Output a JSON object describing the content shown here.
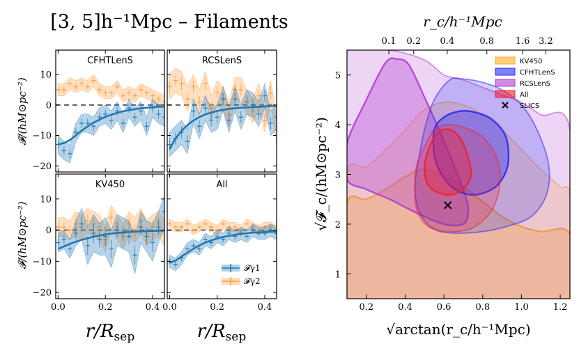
{
  "figure_title": "[3, 5]h⁻¹Mpc – Filaments",
  "colors": {
    "gamma1": "#1f77b4",
    "gamma2": "#ff9a3c",
    "zero_line": "#666666",
    "KV450": "#ffb020",
    "CFHTLenS": "#2a2cf0",
    "RCSLenS": "#b040d0",
    "All": "#f02030",
    "SLICS": "#000000"
  },
  "panel_labels": [
    "CFHTLenS",
    "RCSLenS",
    "KV450",
    "All"
  ],
  "left_axes": {
    "ylabel": "𝓕/(hM⊙pc⁻²)",
    "xlabel": "r/R",
    "xlabel_sub": "sep",
    "x_ticks": [
      "0.0",
      "0.2",
      "0.4"
    ],
    "y_ticks": [
      "10",
      "0",
      "−10",
      "−20"
    ]
  },
  "right_axes": {
    "xlabel": "√arctan(r_c/h⁻¹Mpc)",
    "ylabel": "√𝓕_c/(hM⊙pc⁻²)",
    "top_label": "r_c/h⁻¹Mpc",
    "x_ticks": [
      "0.2",
      "0.4",
      "0.6",
      "0.8",
      "1.0",
      "1.2"
    ],
    "y_ticks": [
      "1",
      "2",
      "3",
      "4",
      "5"
    ],
    "top_ticks": [
      "0.1",
      "0.2",
      "0.4",
      "0.8",
      "1.6",
      "3.2"
    ]
  },
  "legend_left": [
    "𝓕γ1",
    "𝓕γ2"
  ],
  "legend_right": [
    "KV450",
    "CFHTLenS",
    "RCSLenS",
    "All",
    "SLICS"
  ],
  "chart_data": [
    {
      "type": "line",
      "panel": "CFHTLenS",
      "xlim": [
        -0.01,
        0.45
      ],
      "ylim": [
        -22,
        18
      ],
      "x": [
        0.0,
        0.025,
        0.05,
        0.075,
        0.1,
        0.125,
        0.15,
        0.175,
        0.2,
        0.225,
        0.25,
        0.275,
        0.3,
        0.325,
        0.35,
        0.375,
        0.4,
        0.425,
        0.45
      ],
      "series": [
        {
          "name": "𝓕γ1",
          "values": [
            -13,
            -15,
            -16,
            -9,
            -6,
            -6,
            -7,
            -4,
            -3,
            -5,
            -2,
            -6,
            -1,
            -4,
            -2,
            -7,
            -1,
            -3,
            -4
          ],
          "err": [
            3,
            3,
            3,
            3,
            3,
            3,
            3,
            3,
            3,
            3,
            3,
            3,
            3,
            3,
            3,
            3,
            3,
            3,
            3
          ],
          "model": [
            -13,
            -12.5,
            -11.5,
            -10,
            -8.4,
            -7,
            -5.8,
            -4.8,
            -3.9,
            -3.2,
            -2.6,
            -2.1,
            -1.7,
            -1.4,
            -1.1,
            -0.9,
            -0.7,
            -0.6,
            -0.5
          ]
        },
        {
          "name": "𝓕γ2",
          "values": [
            5,
            5,
            7,
            6,
            7,
            6,
            8,
            5,
            4,
            4,
            6,
            3,
            4,
            3,
            5,
            4,
            3,
            2,
            1
          ],
          "err": [
            2,
            2,
            2,
            2,
            2,
            2,
            2,
            2,
            2,
            2,
            2,
            2,
            2,
            2,
            2,
            2,
            2,
            2,
            2
          ]
        }
      ]
    },
    {
      "type": "line",
      "panel": "RCSLenS",
      "xlim": [
        -0.01,
        0.45
      ],
      "ylim": [
        -22,
        18
      ],
      "x": [
        0.0,
        0.025,
        0.05,
        0.075,
        0.1,
        0.125,
        0.15,
        0.175,
        0.2,
        0.225,
        0.25,
        0.275,
        0.3,
        0.325,
        0.35,
        0.375,
        0.4,
        0.425,
        0.45
      ],
      "series": [
        {
          "name": "𝓕γ1",
          "values": [
            -13,
            -11,
            -9,
            -12,
            -2,
            -7,
            -1,
            -5,
            -4,
            2,
            -5,
            2,
            -4,
            1,
            0,
            -3,
            3,
            -6,
            -4
          ],
          "err": [
            4,
            4,
            4,
            4,
            4,
            4,
            4,
            4,
            4,
            4,
            4,
            4,
            4,
            4,
            4,
            4,
            4,
            4,
            4
          ],
          "model": [
            -14.5,
            -11,
            -8.5,
            -6.6,
            -5.1,
            -4,
            -3.1,
            -2.5,
            -2,
            -1.6,
            -1.3,
            -1.1,
            -0.9,
            -0.8,
            -0.7,
            -0.6,
            -0.5,
            -0.4,
            -0.4
          ]
        },
        {
          "name": "𝓕γ2",
          "values": [
            6,
            8,
            7,
            2,
            6,
            1,
            7,
            -1,
            4,
            2,
            -3,
            5,
            5,
            1,
            -2,
            3,
            -5,
            4,
            -8
          ],
          "err": [
            4,
            4,
            4,
            4,
            4,
            4,
            4,
            4,
            4,
            4,
            4,
            4,
            4,
            4,
            4,
            4,
            4,
            4,
            4
          ]
        }
      ]
    },
    {
      "type": "line",
      "panel": "KV450",
      "xlim": [
        -0.01,
        0.45
      ],
      "ylim": [
        -22,
        18
      ],
      "x": [
        0.0,
        0.025,
        0.05,
        0.075,
        0.1,
        0.125,
        0.15,
        0.175,
        0.2,
        0.225,
        0.25,
        0.275,
        0.3,
        0.325,
        0.35,
        0.375,
        0.4,
        0.425,
        0.45
      ],
      "series": [
        {
          "name": "𝓕γ1",
          "values": [
            -4,
            -3,
            -6,
            -1,
            2,
            -5,
            -1,
            -3,
            -2,
            -6,
            0,
            -1,
            -2,
            -8,
            1,
            -2,
            -4,
            1,
            6
          ],
          "err": [
            3,
            3,
            3,
            4,
            5,
            6,
            6,
            5,
            6,
            6,
            5,
            5,
            5,
            6,
            5,
            5,
            6,
            5,
            5
          ],
          "model": [
            -6,
            -5.2,
            -4.4,
            -3.7,
            -3.1,
            -2.6,
            -2.1,
            -1.7,
            -1.4,
            -1.1,
            -0.9,
            -0.7,
            -0.6,
            -0.5,
            -0.4,
            -0.3,
            -0.25,
            -0.2,
            -0.15
          ]
        },
        {
          "name": "𝓕γ2",
          "values": [
            1,
            1,
            0,
            2,
            1,
            3,
            2,
            1,
            -3,
            4,
            1,
            -2,
            2,
            0,
            3,
            -1,
            1,
            2,
            -1
          ],
          "err": [
            3,
            3,
            3,
            4,
            4,
            4,
            4,
            4,
            4,
            4,
            4,
            4,
            4,
            4,
            4,
            4,
            4,
            4,
            4
          ]
        }
      ]
    },
    {
      "type": "line",
      "panel": "All",
      "xlim": [
        -0.01,
        0.45
      ],
      "ylim": [
        -22,
        18
      ],
      "x": [
        0.0,
        0.025,
        0.05,
        0.075,
        0.1,
        0.125,
        0.15,
        0.175,
        0.2,
        0.225,
        0.25,
        0.275,
        0.3,
        0.325,
        0.35,
        0.375,
        0.4,
        0.425,
        0.45
      ],
      "series": [
        {
          "name": "𝓕γ1",
          "values": [
            -10,
            -11,
            -9,
            -6,
            -5,
            -6,
            -3,
            -4,
            -2,
            -3,
            -1,
            -2,
            -1,
            -2,
            0,
            -1,
            -1,
            0,
            -1
          ],
          "err": [
            2,
            2,
            2,
            2,
            2,
            2,
            2,
            2,
            2,
            2,
            2,
            2,
            2,
            2,
            2,
            2,
            2,
            2,
            2
          ],
          "model": [
            -10.5,
            -9.8,
            -8.5,
            -7.2,
            -6,
            -4.9,
            -4,
            -3.3,
            -2.7,
            -2.2,
            -1.8,
            -1.5,
            -1.2,
            -1,
            -0.8,
            -0.7,
            -0.6,
            -0.5,
            -0.4
          ]
        },
        {
          "name": "𝓕γ2",
          "values": [
            2,
            1,
            1,
            2,
            0,
            1,
            2,
            1,
            0,
            2,
            1,
            1,
            0,
            2,
            1,
            0,
            1,
            1,
            0
          ],
          "err": [
            1.5,
            1.5,
            1.5,
            1.5,
            1.5,
            1.5,
            1.5,
            1.5,
            1.5,
            1.5,
            1.5,
            1.5,
            1.5,
            1.5,
            1.5,
            1.5,
            1.5,
            1.5,
            1.5
          ]
        }
      ]
    },
    {
      "type": "contour",
      "panel": "posterior",
      "xlim": [
        0.1,
        1.25
      ],
      "ylim": [
        0.5,
        5.5
      ],
      "regions": [
        {
          "name": "KV450",
          "level": "2sigma",
          "points": [
            [
              0.1,
              3.0
            ],
            [
              0.2,
              3.15
            ],
            [
              0.3,
              3.5
            ],
            [
              0.4,
              3.9
            ],
            [
              0.5,
              4.3
            ],
            [
              0.6,
              4.45
            ],
            [
              0.7,
              4.4
            ],
            [
              0.8,
              4.2
            ],
            [
              0.9,
              3.9
            ],
            [
              1.0,
              3.5
            ],
            [
              1.1,
              3.1
            ],
            [
              1.2,
              2.75
            ],
            [
              1.25,
              2.55
            ],
            [
              1.25,
              0.5
            ],
            [
              0.1,
              0.5
            ]
          ]
        },
        {
          "name": "KV450",
          "level": "1sigma",
          "points": [
            [
              0.1,
              2.4
            ],
            [
              0.2,
              2.5
            ],
            [
              0.3,
              2.7
            ],
            [
              0.4,
              2.95
            ],
            [
              0.48,
              3.1
            ],
            [
              0.55,
              3.05
            ],
            [
              0.6,
              2.95
            ],
            [
              0.7,
              2.75
            ],
            [
              0.8,
              2.45
            ],
            [
              0.9,
              2.15
            ],
            [
              1.0,
              1.95
            ],
            [
              1.1,
              1.85
            ],
            [
              1.25,
              1.8
            ],
            [
              1.25,
              0.5
            ],
            [
              0.1,
              0.5
            ]
          ]
        },
        {
          "name": "RCSLenS",
          "level": "2sigma",
          "points": [
            [
              0.1,
              5.5
            ],
            [
              0.32,
              5.5
            ],
            [
              0.5,
              5.3
            ],
            [
              0.6,
              5.0
            ],
            [
              0.7,
              4.9
            ],
            [
              0.8,
              4.75
            ],
            [
              0.9,
              4.6
            ],
            [
              1.0,
              4.45
            ],
            [
              1.1,
              4.2
            ],
            [
              1.25,
              3.9
            ],
            [
              1.25,
              0.5
            ],
            [
              0.1,
              0.5
            ]
          ]
        },
        {
          "name": "RCSLenS",
          "level": "1sigma",
          "points": [
            [
              0.1,
              3.62
            ],
            [
              0.2,
              4.5
            ],
            [
              0.3,
              5.25
            ],
            [
              0.36,
              5.32
            ],
            [
              0.42,
              5.2
            ],
            [
              0.5,
              4.55
            ],
            [
              0.58,
              3.85
            ],
            [
              0.66,
              3.1
            ],
            [
              0.72,
              2.45
            ],
            [
              0.72,
              2.1
            ],
            [
              0.68,
              1.98
            ],
            [
              0.6,
              2.0
            ],
            [
              0.5,
              2.15
            ],
            [
              0.42,
              2.3
            ],
            [
              0.32,
              2.5
            ],
            [
              0.2,
              2.7
            ],
            [
              0.1,
              2.9
            ]
          ]
        },
        {
          "name": "CFHTLenS",
          "level": "2sigma",
          "points": [
            [
              0.63,
              4.9
            ],
            [
              0.7,
              4.92
            ],
            [
              0.8,
              4.85
            ],
            [
              0.9,
              4.7
            ],
            [
              1.0,
              4.4
            ],
            [
              1.08,
              3.9
            ],
            [
              1.14,
              3.2
            ],
            [
              1.13,
              2.6
            ],
            [
              1.05,
              2.15
            ],
            [
              0.92,
              1.95
            ],
            [
              0.8,
              1.85
            ],
            [
              0.65,
              1.82
            ],
            [
              0.55,
              1.9
            ],
            [
              0.48,
              2.2
            ],
            [
              0.45,
              2.7
            ],
            [
              0.47,
              3.3
            ],
            [
              0.5,
              3.9
            ],
            [
              0.55,
              4.5
            ]
          ]
        },
        {
          "name": "CFHTLenS",
          "level": "1sigma",
          "points": [
            [
              0.55,
              3.9
            ],
            [
              0.6,
              4.15
            ],
            [
              0.68,
              4.27
            ],
            [
              0.76,
              4.25
            ],
            [
              0.85,
              4.1
            ],
            [
              0.92,
              3.75
            ],
            [
              0.93,
              3.2
            ],
            [
              0.88,
              2.8
            ],
            [
              0.8,
              2.62
            ],
            [
              0.72,
              2.6
            ],
            [
              0.64,
              2.75
            ],
            [
              0.58,
              3.05
            ],
            [
              0.55,
              3.4
            ]
          ]
        },
        {
          "name": "All",
          "level": "2sigma",
          "points": [
            [
              0.5,
              3.55
            ],
            [
              0.55,
              3.9
            ],
            [
              0.62,
              4.0
            ],
            [
              0.7,
              3.95
            ],
            [
              0.8,
              3.75
            ],
            [
              0.87,
              3.35
            ],
            [
              0.89,
              2.85
            ],
            [
              0.85,
              2.3
            ],
            [
              0.75,
              1.93
            ],
            [
              0.63,
              1.85
            ],
            [
              0.52,
              1.95
            ],
            [
              0.46,
              2.3
            ],
            [
              0.45,
              2.8
            ],
            [
              0.46,
              3.2
            ]
          ]
        },
        {
          "name": "All",
          "level": "1sigma",
          "points": [
            [
              0.52,
              3.5
            ],
            [
              0.57,
              3.85
            ],
            [
              0.63,
              3.9
            ],
            [
              0.68,
              3.75
            ],
            [
              0.72,
              3.4
            ],
            [
              0.74,
              3.0
            ],
            [
              0.71,
              2.75
            ],
            [
              0.65,
              2.6
            ],
            [
              0.58,
              2.62
            ],
            [
              0.52,
              2.78
            ],
            [
              0.5,
              3.1
            ]
          ]
        }
      ],
      "points": [
        {
          "name": "SLICS",
          "x": 0.62,
          "y": 2.38,
          "marker": "x"
        }
      ]
    }
  ]
}
